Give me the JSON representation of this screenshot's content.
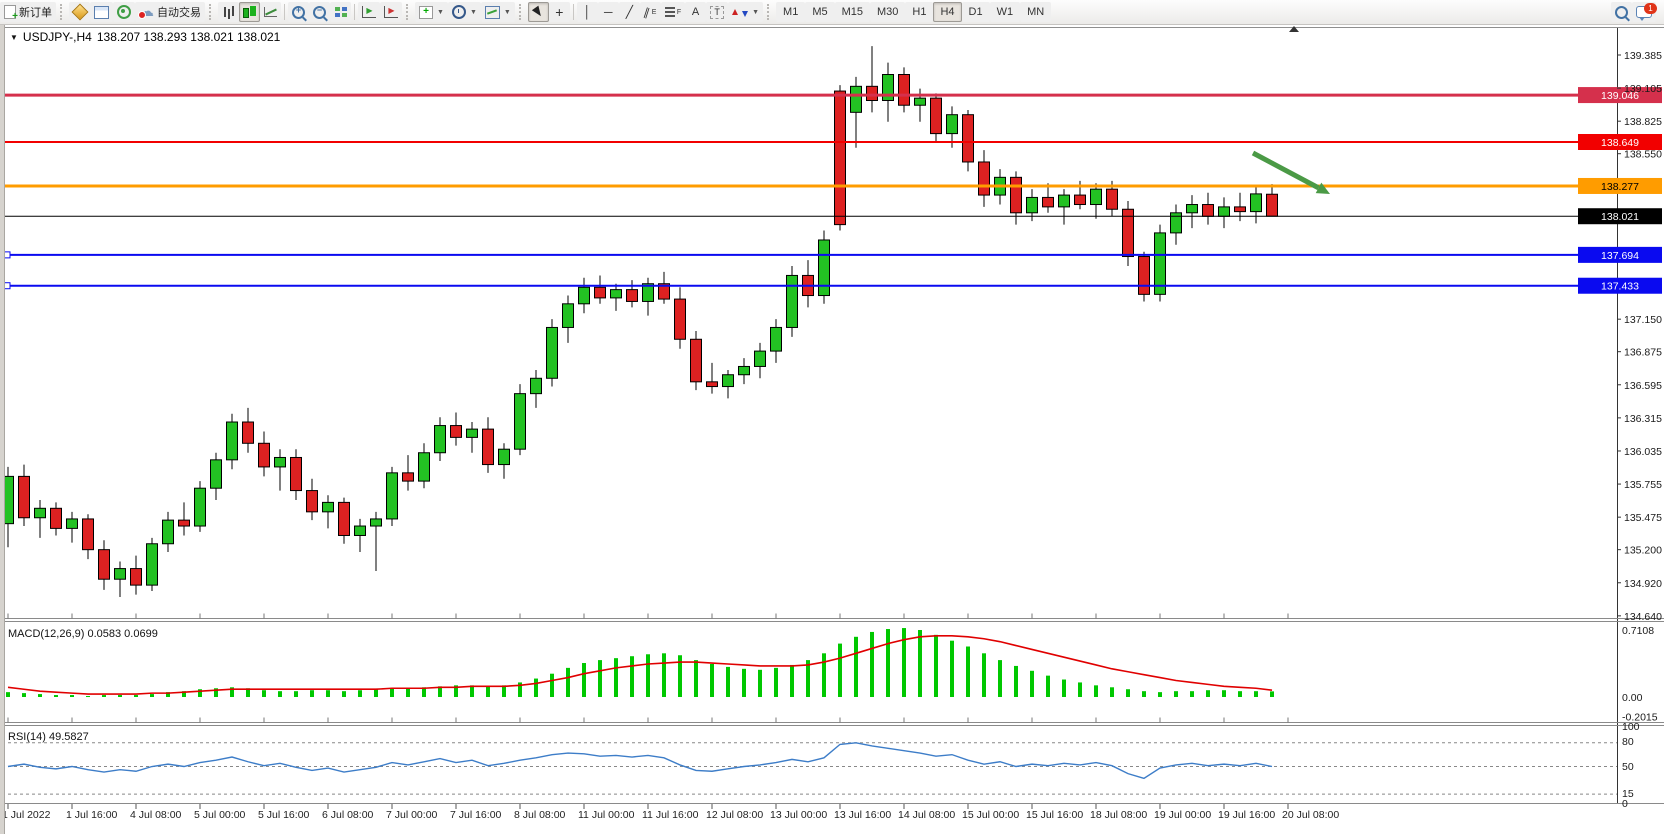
{
  "window": {
    "symbol_title": "USDJPY-,H4",
    "ohlc_text": "138.207 138.293 138.021 138.021"
  },
  "toolbar": {
    "new_order": "新订单",
    "auto_trading": "自动交易",
    "timeframes": [
      "M1",
      "M5",
      "M15",
      "M30",
      "H1",
      "H4",
      "D1",
      "W1",
      "MN"
    ],
    "active_timeframe": "H4",
    "notification_count": "1"
  },
  "chart_data": {
    "type": "candlestick",
    "symbol": "USDJPY-",
    "period": "H4",
    "current_bar": {
      "open": 138.207,
      "high": 138.293,
      "low": 138.021,
      "close": 138.021
    },
    "colors": {
      "up": "#23c123",
      "down": "#dd2121",
      "wick": "#000000",
      "macd_hist": "#00c800",
      "macd_signal": "#e00000",
      "rsi_line": "#3d7dc8",
      "arrow": "#4b9a46"
    },
    "y_axis": {
      "ticks": [
        139.385,
        139.105,
        138.825,
        138.55,
        137.15,
        136.875,
        136.595,
        136.315,
        136.035,
        135.755,
        135.475,
        135.2,
        134.92,
        134.64
      ]
    },
    "x_axis": {
      "bars_per_label": 4,
      "labels": [
        "1 Jul 2022",
        "1 Jul 16:00",
        "4 Jul 08:00",
        "5 Jul 00:00",
        "5 Jul 16:00",
        "6 Jul 08:00",
        "7 Jul 00:00",
        "7 Jul 16:00",
        "8 Jul 08:00",
        "11 Jul 00:00",
        "11 Jul 16:00",
        "12 Jul 08:00",
        "13 Jul 00:00",
        "13 Jul 16:00",
        "14 Jul 08:00",
        "15 Jul 00:00",
        "15 Jul 16:00",
        "18 Jul 08:00",
        "19 Jul 00:00",
        "19 Jul 16:00",
        "20 Jul 08:00"
      ]
    },
    "hlines": [
      {
        "price": 139.046,
        "label": "139.046",
        "color": "#d5304c",
        "width": 3,
        "text_color": "#ffffff",
        "selected": false
      },
      {
        "price": 138.649,
        "label": "138.649",
        "color": "#f20000",
        "width": 2,
        "text_color": "#ffffff",
        "selected": false
      },
      {
        "price": 138.277,
        "label": "138.277",
        "color": "#ff9c00",
        "width": 3,
        "text_color": "#000000",
        "selected": false
      },
      {
        "price": 138.021,
        "label": "138.021",
        "color": "#000000",
        "width": 1,
        "text_color": "#ffffff",
        "selected": false
      },
      {
        "price": 137.694,
        "label": "137.694",
        "color": "#0a0af0",
        "width": 2,
        "text_color": "#ffffff",
        "selected": true
      },
      {
        "price": 137.433,
        "label": "137.433",
        "color": "#0a0af0",
        "width": 2,
        "text_color": "#ffffff",
        "selected": true
      }
    ],
    "candles": [
      [
        135.42,
        135.9,
        135.22,
        135.82
      ],
      [
        135.82,
        135.92,
        135.4,
        135.47
      ],
      [
        135.47,
        135.62,
        135.3,
        135.55
      ],
      [
        135.55,
        135.6,
        135.32,
        135.38
      ],
      [
        135.38,
        135.52,
        135.26,
        135.46
      ],
      [
        135.46,
        135.5,
        135.12,
        135.2
      ],
      [
        135.2,
        135.28,
        134.86,
        134.95
      ],
      [
        134.95,
        135.1,
        134.8,
        135.04
      ],
      [
        135.04,
        135.15,
        134.82,
        134.9
      ],
      [
        134.9,
        135.3,
        134.85,
        135.25
      ],
      [
        135.25,
        135.52,
        135.18,
        135.45
      ],
      [
        135.45,
        135.6,
        135.32,
        135.4
      ],
      [
        135.4,
        135.78,
        135.35,
        135.72
      ],
      [
        135.72,
        136.02,
        135.62,
        135.96
      ],
      [
        135.96,
        136.35,
        135.88,
        136.28
      ],
      [
        136.28,
        136.4,
        136.02,
        136.1
      ],
      [
        136.1,
        136.2,
        135.82,
        135.9
      ],
      [
        135.9,
        136.05,
        135.7,
        135.98
      ],
      [
        135.98,
        136.05,
        135.62,
        135.7
      ],
      [
        135.7,
        135.8,
        135.45,
        135.52
      ],
      [
        135.52,
        135.66,
        135.38,
        135.6
      ],
      [
        135.6,
        135.64,
        135.25,
        135.32
      ],
      [
        135.32,
        135.46,
        135.18,
        135.4
      ],
      [
        135.4,
        135.52,
        135.02,
        135.46
      ],
      [
        135.46,
        135.9,
        135.4,
        135.85
      ],
      [
        135.85,
        136.0,
        135.7,
        135.78
      ],
      [
        135.78,
        136.1,
        135.72,
        136.02
      ],
      [
        136.02,
        136.32,
        135.95,
        136.25
      ],
      [
        136.25,
        136.36,
        136.08,
        136.15
      ],
      [
        136.15,
        136.28,
        136.02,
        136.22
      ],
      [
        136.22,
        136.32,
        135.85,
        135.92
      ],
      [
        135.92,
        136.1,
        135.8,
        136.05
      ],
      [
        136.05,
        136.6,
        136.0,
        136.52
      ],
      [
        136.52,
        136.72,
        136.4,
        136.65
      ],
      [
        136.65,
        137.15,
        136.58,
        137.08
      ],
      [
        137.08,
        137.35,
        136.95,
        137.28
      ],
      [
        137.28,
        137.5,
        137.2,
        137.42
      ],
      [
        137.42,
        137.52,
        137.28,
        137.33
      ],
      [
        137.33,
        137.45,
        137.22,
        137.4
      ],
      [
        137.4,
        137.48,
        137.25,
        137.3
      ],
      [
        137.3,
        137.5,
        137.18,
        137.45
      ],
      [
        137.45,
        137.55,
        137.28,
        137.32
      ],
      [
        137.32,
        137.42,
        136.9,
        136.98
      ],
      [
        136.98,
        137.05,
        136.55,
        136.62
      ],
      [
        136.62,
        136.78,
        136.52,
        136.58
      ],
      [
        136.58,
        136.72,
        136.48,
        136.68
      ],
      [
        136.68,
        136.82,
        136.6,
        136.75
      ],
      [
        136.75,
        136.95,
        136.65,
        136.88
      ],
      [
        136.88,
        137.15,
        136.78,
        137.08
      ],
      [
        137.08,
        137.6,
        137.0,
        137.52
      ],
      [
        137.52,
        137.65,
        137.25,
        137.35
      ],
      [
        137.35,
        137.9,
        137.28,
        137.82
      ],
      [
        139.08,
        139.13,
        137.9,
        137.95
      ],
      [
        138.9,
        139.2,
        138.6,
        139.12
      ],
      [
        139.12,
        139.46,
        138.9,
        139.0
      ],
      [
        139.0,
        139.32,
        138.82,
        139.22
      ],
      [
        139.22,
        139.28,
        138.9,
        138.96
      ],
      [
        138.96,
        139.1,
        138.82,
        139.02
      ],
      [
        139.02,
        139.06,
        138.65,
        138.72
      ],
      [
        138.72,
        138.95,
        138.6,
        138.88
      ],
      [
        138.88,
        138.92,
        138.4,
        138.48
      ],
      [
        138.48,
        138.58,
        138.1,
        138.2
      ],
      [
        138.2,
        138.42,
        138.12,
        138.35
      ],
      [
        138.35,
        138.4,
        137.95,
        138.05
      ],
      [
        138.05,
        138.25,
        137.98,
        138.18
      ],
      [
        138.18,
        138.3,
        138.05,
        138.1
      ],
      [
        138.1,
        138.25,
        137.95,
        138.2
      ],
      [
        138.2,
        138.32,
        138.08,
        138.12
      ],
      [
        138.12,
        138.3,
        138.0,
        138.25
      ],
      [
        138.25,
        138.32,
        138.02,
        138.08
      ],
      [
        138.08,
        138.15,
        137.6,
        137.68
      ],
      [
        137.68,
        137.72,
        137.3,
        137.36
      ],
      [
        137.36,
        137.95,
        137.3,
        137.88
      ],
      [
        137.88,
        138.12,
        137.78,
        138.05
      ],
      [
        138.05,
        138.2,
        137.92,
        138.12
      ],
      [
        138.12,
        138.22,
        137.95,
        138.02
      ],
      [
        138.02,
        138.18,
        137.92,
        138.1
      ],
      [
        138.1,
        138.22,
        137.98,
        138.06
      ],
      [
        138.06,
        138.28,
        137.96,
        138.21
      ],
      [
        138.207,
        138.293,
        138.021,
        138.021
      ]
    ],
    "indicators": {
      "macd": {
        "label": "MACD(12,26,9)",
        "values_text": "0.0583 0.0699",
        "axis_labels": [
          "0.7108",
          "0.00",
          "-0.2015"
        ],
        "axis_values": [
          0.7108,
          0,
          -0.2015
        ],
        "histogram": [
          0.05,
          0.04,
          0.03,
          0.02,
          0.02,
          0.01,
          0.02,
          0.02,
          0.02,
          0.03,
          0.05,
          0.06,
          0.08,
          0.09,
          0.1,
          0.09,
          0.07,
          0.06,
          0.06,
          0.07,
          0.07,
          0.06,
          0.07,
          0.08,
          0.09,
          0.09,
          0.1,
          0.11,
          0.12,
          0.12,
          0.11,
          0.12,
          0.15,
          0.19,
          0.24,
          0.3,
          0.35,
          0.38,
          0.4,
          0.42,
          0.44,
          0.45,
          0.43,
          0.38,
          0.34,
          0.31,
          0.29,
          0.28,
          0.3,
          0.33,
          0.38,
          0.45,
          0.55,
          0.62,
          0.67,
          0.7,
          0.71,
          0.69,
          0.64,
          0.58,
          0.52,
          0.45,
          0.38,
          0.32,
          0.27,
          0.22,
          0.18,
          0.15,
          0.12,
          0.1,
          0.08,
          0.06,
          0.05,
          0.06,
          0.06,
          0.07,
          0.07,
          0.06,
          0.06,
          0.058
        ],
        "signal": [
          0.1,
          0.08,
          0.06,
          0.05,
          0.04,
          0.03,
          0.03,
          0.03,
          0.03,
          0.04,
          0.04,
          0.05,
          0.06,
          0.07,
          0.08,
          0.08,
          0.08,
          0.08,
          0.08,
          0.08,
          0.08,
          0.08,
          0.08,
          0.08,
          0.09,
          0.09,
          0.09,
          0.1,
          0.1,
          0.11,
          0.11,
          0.11,
          0.12,
          0.14,
          0.17,
          0.2,
          0.24,
          0.27,
          0.3,
          0.32,
          0.34,
          0.35,
          0.36,
          0.36,
          0.35,
          0.34,
          0.33,
          0.32,
          0.32,
          0.32,
          0.33,
          0.36,
          0.4,
          0.45,
          0.5,
          0.55,
          0.59,
          0.62,
          0.63,
          0.63,
          0.62,
          0.6,
          0.57,
          0.53,
          0.49,
          0.45,
          0.41,
          0.37,
          0.33,
          0.29,
          0.26,
          0.23,
          0.2,
          0.17,
          0.15,
          0.13,
          0.11,
          0.1,
          0.09,
          0.07
        ]
      },
      "rsi": {
        "label": "RSI(14)",
        "value_text": "49.5827",
        "axis_labels": [
          "100",
          "80",
          "50",
          "15",
          "0"
        ],
        "levels": [
          80,
          50,
          15
        ],
        "values": [
          50,
          53,
          49,
          47,
          50,
          46,
          43,
          46,
          44,
          50,
          53,
          50,
          55,
          58,
          62,
          56,
          51,
          54,
          49,
          45,
          48,
          43,
          46,
          49,
          55,
          52,
          56,
          60,
          55,
          58,
          51,
          54,
          58,
          61,
          65,
          67,
          66,
          63,
          64,
          62,
          64,
          61,
          52,
          45,
          44,
          47,
          50,
          52,
          55,
          59,
          56,
          61,
          78,
          80,
          76,
          73,
          70,
          67,
          63,
          65,
          58,
          53,
          56,
          50,
          53,
          51,
          54,
          52,
          55,
          51,
          41,
          35,
          48,
          52,
          54,
          51,
          53,
          51,
          54,
          50
        ]
      }
    },
    "annotations": {
      "trend_arrow": {
        "from": [
          1253,
          153
        ],
        "to": [
          1330,
          194
        ]
      }
    }
  }
}
